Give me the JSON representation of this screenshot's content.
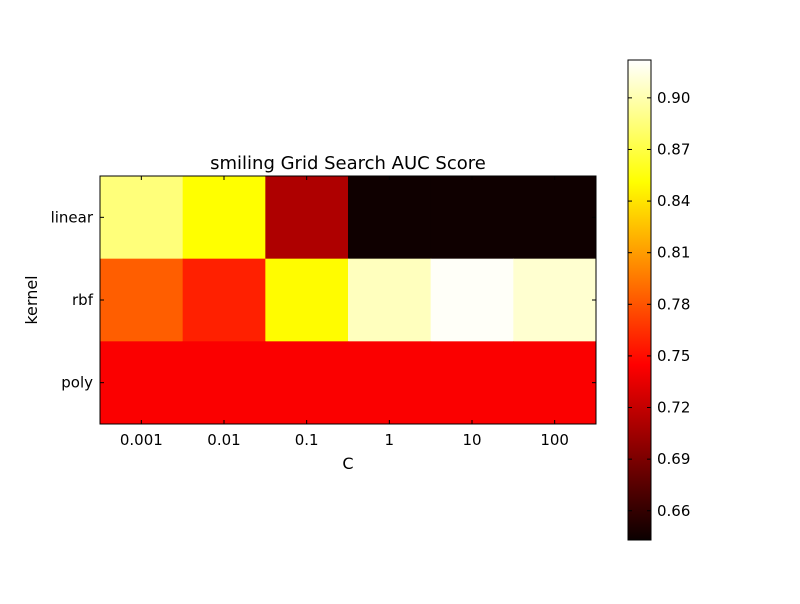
{
  "chart_data": {
    "type": "heatmap",
    "title": "smiling Grid Search AUC Score",
    "xlabel": "C",
    "ylabel": "kernel",
    "x_categories": [
      "0.001",
      "0.01",
      "0.1",
      "1",
      "10",
      "100"
    ],
    "y_categories": [
      "linear",
      "rbf",
      "poly"
    ],
    "values": [
      [
        0.885,
        0.851,
        0.711,
        0.645,
        0.645,
        0.645
      ],
      [
        0.784,
        0.758,
        0.85,
        0.904,
        0.92,
        0.909
      ],
      [
        0.743,
        0.743,
        0.743,
        0.743,
        0.743,
        0.743
      ]
    ],
    "colormap": "hot",
    "colorbar": {
      "range": [
        0.643,
        0.922
      ],
      "ticks": [
        "0.66",
        "0.69",
        "0.72",
        "0.75",
        "0.78",
        "0.81",
        "0.84",
        "0.87",
        "0.90"
      ]
    }
  }
}
